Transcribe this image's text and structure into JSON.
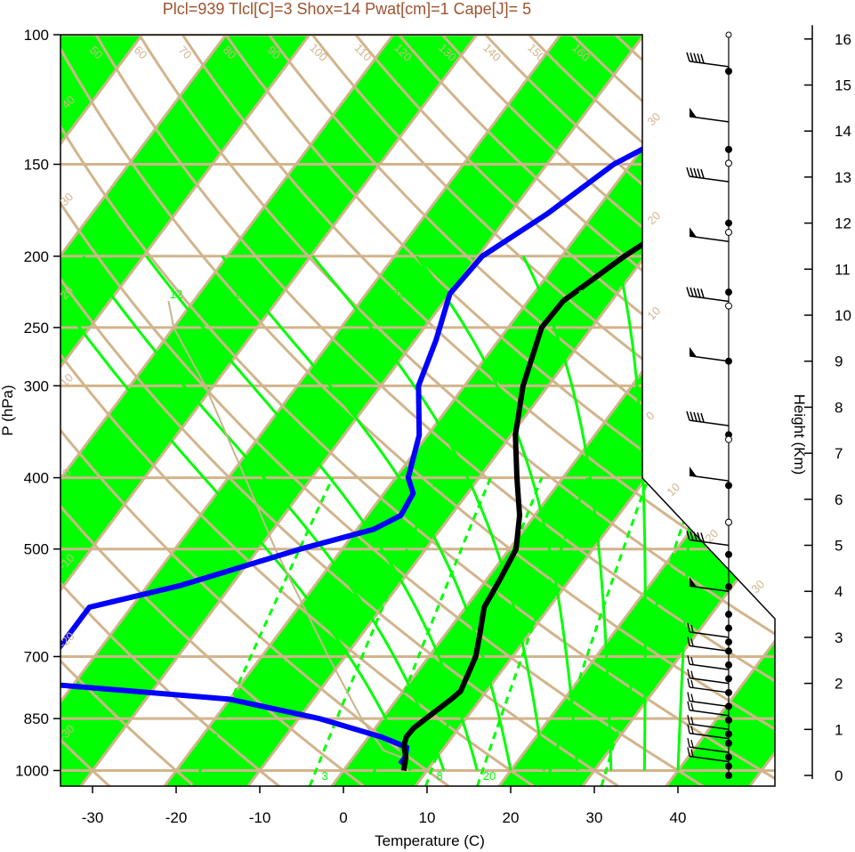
{
  "title": "Plcl=939 Tlcl[C]=3 Shox=14 Pwat[cm]=1 Cape[J]= 5",
  "colors": {
    "isotherm_band": "#00ff00",
    "background_lines": "#d2b48c",
    "temperature": "#000000",
    "dewpoint": "#0000ff",
    "moist_adiabat": "#00ff00",
    "title": "#a0522d",
    "parcel": "#c8b48c"
  },
  "chart_data": {
    "type": "skew-t log-p",
    "xlabel": "Temperature (C)",
    "ylabel": "P (hPa)",
    "right_label": "Height (Km)",
    "x_ticks": [
      "-30",
      "-20",
      "-10",
      "0",
      "10",
      "20",
      "30",
      "40"
    ],
    "p_ticks": [
      "100",
      "150",
      "200",
      "250",
      "300",
      "400",
      "500",
      "700",
      "850",
      "1000"
    ],
    "height_ticks": [
      "0",
      "1",
      "2",
      "3",
      "4",
      "5",
      "6",
      "7",
      "8",
      "9",
      "10",
      "11",
      "12",
      "13",
      "14",
      "15",
      "16"
    ],
    "xlim": [
      -34,
      52
    ],
    "plim": [
      1050,
      100
    ],
    "dry_adiabat_labels": [
      "50",
      "60",
      "70",
      "80",
      "90",
      "100",
      "110",
      "120",
      "130",
      "140",
      "150",
      "160"
    ],
    "moist_adiabat_labels": [
      "12",
      "16",
      "24",
      "32"
    ],
    "mixing_ratio_labels": [
      "3",
      "8",
      "20"
    ],
    "isotherm_labels": [
      "40",
      "30",
      "20",
      "10",
      "0",
      "-10",
      "-20",
      "-30",
      "30",
      "20",
      "10",
      "0",
      "10",
      "20",
      "30"
    ],
    "temperature_profile": [
      {
        "p": 1000,
        "t": 7.2
      },
      {
        "p": 960,
        "t": 6.3
      },
      {
        "p": 925,
        "t": 5.0
      },
      {
        "p": 900,
        "t": 4.5
      },
      {
        "p": 875,
        "t": 4.6
      },
      {
        "p": 850,
        "t": 5.2
      },
      {
        "p": 800,
        "t": 6.5
      },
      {
        "p": 780,
        "t": 6.9
      },
      {
        "p": 700,
        "t": 5.6
      },
      {
        "p": 650,
        "t": 4.0
      },
      {
        "p": 600,
        "t": 2.2
      },
      {
        "p": 550,
        "t": 1.6
      },
      {
        "p": 500,
        "t": 0.8
      },
      {
        "p": 450,
        "t": -1.8
      },
      {
        "p": 400,
        "t": -5.5
      },
      {
        "p": 350,
        "t": -9.5
      },
      {
        "p": 300,
        "t": -13.0
      },
      {
        "p": 250,
        "t": -16.0
      },
      {
        "p": 230,
        "t": -15.8
      },
      {
        "p": 200,
        "t": -12.5
      },
      {
        "p": 175,
        "t": -8.5
      },
      {
        "p": 150,
        "t": -5.0
      },
      {
        "p": 125,
        "t": 1.0
      },
      {
        "p": 108,
        "t": 4.5
      }
    ],
    "dewpoint_profile": [
      {
        "p": 980,
        "t": 6.2
      },
      {
        "p": 960,
        "t": 6.2
      },
      {
        "p": 930,
        "t": 5.5
      },
      {
        "p": 900,
        "t": 1.5
      },
      {
        "p": 850,
        "t": -7.5
      },
      {
        "p": 800,
        "t": -20.0
      },
      {
        "p": 760,
        "t": -45.0
      },
      {
        "p": 600,
        "t": -45.0
      },
      {
        "p": 560,
        "t": -36.0
      },
      {
        "p": 500,
        "t": -25.0
      },
      {
        "p": 470,
        "t": -18.0
      },
      {
        "p": 450,
        "t": -16.0
      },
      {
        "p": 420,
        "t": -16.5
      },
      {
        "p": 400,
        "t": -18.5
      },
      {
        "p": 350,
        "t": -21.0
      },
      {
        "p": 300,
        "t": -25.5
      },
      {
        "p": 260,
        "t": -27.5
      },
      {
        "p": 225,
        "t": -30.0
      },
      {
        "p": 200,
        "t": -29.5
      },
      {
        "p": 175,
        "t": -25.5
      },
      {
        "p": 150,
        "t": -22.0
      },
      {
        "p": 137,
        "t": -18.0
      },
      {
        "p": 108,
        "t": -5.5
      }
    ],
    "parcel_profile": [
      {
        "p": 960,
        "t": 5.8
      },
      {
        "p": 939,
        "t": 3.0
      },
      {
        "p": 850,
        "t": -2.5
      },
      {
        "p": 700,
        "t": -12.0
      },
      {
        "p": 500,
        "t": -28.0
      },
      {
        "p": 400,
        "t": -38.0
      },
      {
        "p": 300,
        "t": -51.0
      },
      {
        "p": 250,
        "t": -60.0
      },
      {
        "p": 230,
        "t": -63.0
      }
    ],
    "wind_barb_heights_km": [
      0.3,
      0.5,
      0.8,
      1.0,
      1.3,
      1.5,
      1.8,
      2.0,
      2.3,
      2.7,
      3.0,
      4.0,
      5.0,
      6.4,
      7.6,
      9.0,
      10.3,
      11.6,
      12.9,
      14.2,
      15.4
    ],
    "wind_dot_heights_km": [
      0,
      0.2,
      0.4,
      0.7,
      0.9,
      1.2,
      1.5,
      1.8,
      2.1,
      2.4,
      2.7,
      2.9,
      3.2,
      3.5,
      4.1,
      4.8,
      5.5,
      6.3,
      7.4,
      9.0,
      10.5,
      12.0,
      13.6,
      15.3
    ]
  }
}
